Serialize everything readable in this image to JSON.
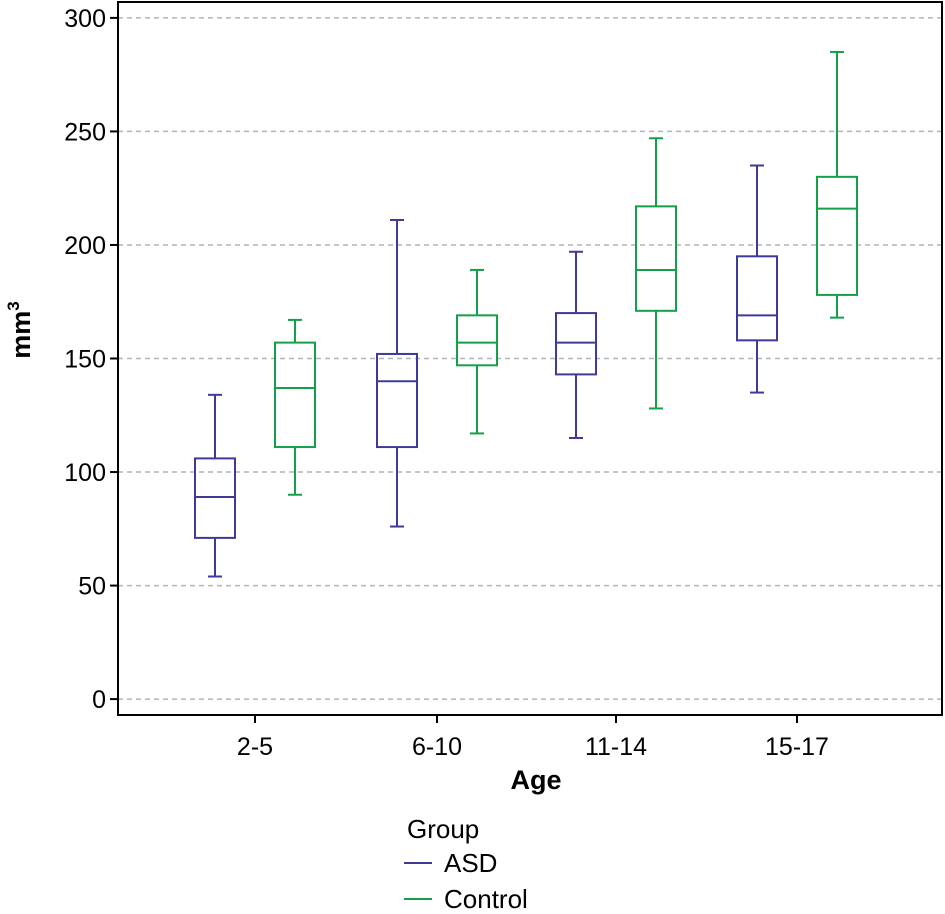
{
  "chart_data": {
    "type": "boxplot",
    "title": "",
    "xlabel": "Age",
    "ylabel": "mm",
    "ylabel_superscript": "3",
    "categories": [
      "2-5",
      "6-10",
      "11-14",
      "15-17"
    ],
    "ylim": [
      -7,
      307
    ],
    "yticks": [
      0,
      50,
      100,
      150,
      200,
      250,
      300
    ],
    "grid": true,
    "legend_title": "Group",
    "legend_position": "bottom-center",
    "series": [
      {
        "name": "ASD",
        "color": "#3f3a96",
        "boxes": [
          {
            "min": 54,
            "q1": 71,
            "median": 89,
            "q3": 106,
            "max": 134
          },
          {
            "min": 76,
            "q1": 111,
            "median": 140,
            "q3": 152,
            "max": 211
          },
          {
            "min": 115,
            "q1": 143,
            "median": 157,
            "q3": 170,
            "max": 197
          },
          {
            "min": 135,
            "q1": 158,
            "median": 169,
            "q3": 195,
            "max": 235
          }
        ]
      },
      {
        "name": "Control",
        "color": "#13a04a",
        "boxes": [
          {
            "min": 90,
            "q1": 111,
            "median": 137,
            "q3": 157,
            "max": 167
          },
          {
            "min": 117,
            "q1": 147,
            "median": 157,
            "q3": 169,
            "max": 189
          },
          {
            "min": 128,
            "q1": 171,
            "median": 189,
            "q3": 217,
            "max": 247
          },
          {
            "min": 168,
            "q1": 178,
            "median": 216,
            "q3": 230,
            "max": 285
          }
        ]
      }
    ]
  }
}
